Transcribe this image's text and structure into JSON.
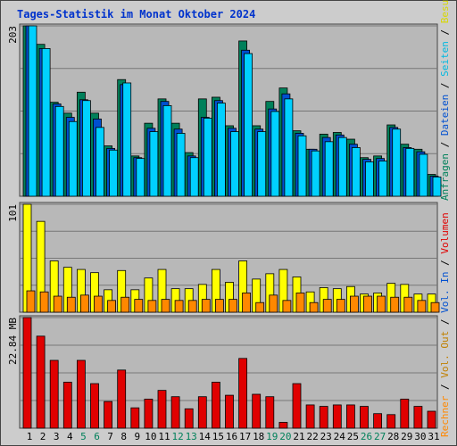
{
  "title": "Tages-Statistik im Monat Oktober 2024",
  "colors": {
    "background": "#cccccc",
    "plot": "#b8b8b8",
    "title": "#0033cc",
    "hits": "#00805a",
    "files": "#0050d0",
    "pages": "#00d0ff",
    "visits": "#ffff00",
    "sites": "#ff8800",
    "kbytes_in": "#e00000",
    "weekend_label": "#00805a",
    "weekday_label": "#000000"
  },
  "right_labels": {
    "top": [
      {
        "text": "Anfragen",
        "color": "#00805a"
      },
      {
        "text": " / ",
        "color": "#000000"
      },
      {
        "text": "Dateien",
        "color": "#0050d0"
      },
      {
        "text": " / ",
        "color": "#000000"
      },
      {
        "text": "Seiten",
        "color": "#00b8e0"
      },
      {
        "text": " / ",
        "color": "#000000"
      },
      {
        "text": "Besuche",
        "color": "#d8d800"
      }
    ],
    "middle": [
      {
        "text": "Rechner",
        "color": "#ff8800"
      },
      {
        "text": " / ",
        "color": "#000000"
      },
      {
        "text": "Vol. Out",
        "color": "#c08000"
      },
      {
        "text": " / ",
        "color": "#000000"
      },
      {
        "text": "Vol. In",
        "color": "#0050d0"
      },
      {
        "text": " / ",
        "color": "#000000"
      },
      {
        "text": "Volumen",
        "color": "#e00000"
      }
    ]
  },
  "chart_data": [
    {
      "type": "bar",
      "panel": "hits_files_pages",
      "max_label": "203",
      "ylim": [
        0,
        203
      ],
      "categories": [
        "1",
        "2",
        "3",
        "4",
        "5",
        "6",
        "7",
        "8",
        "9",
        "10",
        "11",
        "12",
        "13",
        "14",
        "15",
        "16",
        "17",
        "18",
        "19",
        "20",
        "21",
        "22",
        "23",
        "24",
        "25",
        "26",
        "27",
        "28",
        "29",
        "30",
        "31"
      ],
      "weekend_days": [
        5,
        6,
        12,
        13,
        19,
        20,
        26,
        27
      ],
      "series": [
        {
          "name": "Anfragen",
          "values": [
            203,
            181,
            112,
            99,
            124,
            99,
            60,
            139,
            48,
            87,
            116,
            87,
            52,
            116,
            118,
            84,
            185,
            84,
            113,
            129,
            78,
            56,
            74,
            76,
            68,
            46,
            48,
            85,
            62,
            56,
            26
          ]
        },
        {
          "name": "Dateien",
          "values": [
            203,
            176,
            110,
            94,
            115,
            92,
            57,
            133,
            46,
            81,
            113,
            80,
            48,
            94,
            114,
            81,
            174,
            80,
            104,
            122,
            75,
            56,
            70,
            73,
            62,
            44,
            45,
            82,
            58,
            53,
            24
          ]
        },
        {
          "name": "Seiten",
          "values": [
            203,
            176,
            107,
            89,
            114,
            82,
            55,
            135,
            45,
            77,
            108,
            75,
            46,
            93,
            111,
            77,
            170,
            77,
            101,
            116,
            72,
            54,
            65,
            70,
            58,
            41,
            42,
            80,
            57,
            50,
            23
          ]
        }
      ]
    },
    {
      "type": "bar",
      "panel": "visits_sites",
      "max_label": "101",
      "ylim": [
        0,
        101
      ],
      "categories": [
        "1",
        "2",
        "3",
        "4",
        "5",
        "6",
        "7",
        "8",
        "9",
        "10",
        "11",
        "12",
        "13",
        "14",
        "15",
        "16",
        "17",
        "18",
        "19",
        "20",
        "21",
        "22",
        "23",
        "24",
        "25",
        "26",
        "27",
        "28",
        "29",
        "30",
        "31"
      ],
      "series": [
        {
          "name": "Besuche",
          "values": [
            101,
            85,
            48,
            42,
            40,
            37,
            21,
            39,
            21,
            32,
            40,
            22,
            22,
            26,
            40,
            28,
            48,
            31,
            36,
            40,
            33,
            19,
            23,
            22,
            24,
            17,
            18,
            27,
            26,
            17,
            17
          ]
        },
        {
          "name": "Rechner",
          "values": [
            20,
            19,
            15,
            14,
            16,
            15,
            11,
            14,
            12,
            11,
            12,
            11,
            11,
            12,
            12,
            12,
            18,
            9,
            16,
            11,
            18,
            9,
            12,
            12,
            15,
            15,
            15,
            14,
            14,
            11,
            9
          ]
        }
      ]
    },
    {
      "type": "bar",
      "panel": "kbytes",
      "max_label": "22.84 MB",
      "ylim": [
        0,
        22.84
      ],
      "categories": [
        "1",
        "2",
        "3",
        "4",
        "5",
        "6",
        "7",
        "8",
        "9",
        "10",
        "11",
        "12",
        "13",
        "14",
        "15",
        "16",
        "17",
        "18",
        "19",
        "20",
        "21",
        "22",
        "23",
        "24",
        "25",
        "26",
        "27",
        "28",
        "29",
        "30",
        "31"
      ],
      "series": [
        {
          "name": "Volumen",
          "values": [
            22.84,
            19.0,
            14.0,
            9.5,
            14.0,
            9.2,
            5.5,
            12.0,
            4.2,
            6.0,
            7.8,
            6.5,
            4.0,
            6.5,
            9.5,
            6.8,
            14.4,
            7.0,
            6.5,
            1.2,
            9.2,
            4.8,
            4.5,
            4.8,
            4.8,
            4.5,
            3.0,
            2.8,
            6.0,
            4.5,
            3.5
          ]
        }
      ]
    }
  ]
}
